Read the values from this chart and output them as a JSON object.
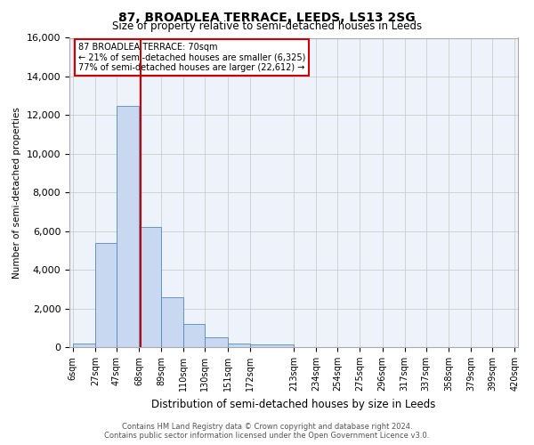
{
  "title_line1": "87, BROADLEA TERRACE, LEEDS, LS13 2SG",
  "title_line2": "Size of property relative to semi-detached houses in Leeds",
  "xlabel": "Distribution of semi-detached houses by size in Leeds",
  "ylabel": "Number of semi-detached properties",
  "annotation_title": "87 BROADLEA TERRACE: 70sqm",
  "annotation_line2": "← 21% of semi-detached houses are smaller (6,325)",
  "annotation_line3": "77% of semi-detached houses are larger (22,612) →",
  "property_size": 70,
  "bin_edges": [
    6,
    27,
    47,
    68,
    89,
    110,
    130,
    151,
    172,
    213,
    234,
    254,
    275,
    296,
    317,
    337,
    358,
    379,
    399,
    420
  ],
  "bar_heights": [
    200,
    5400,
    12500,
    6200,
    2600,
    1200,
    500,
    200,
    130,
    0,
    0,
    0,
    0,
    0,
    0,
    0,
    0,
    0,
    0
  ],
  "bar_color": "#c8d8f0",
  "bar_edge_color": "#5588bb",
  "red_line_color": "#cc0000",
  "annotation_box_color": "#cc0000",
  "grid_color": "#cccccc",
  "background_color": "#eef2fb",
  "ylim": [
    0,
    16000
  ],
  "yticks": [
    0,
    2000,
    4000,
    6000,
    8000,
    10000,
    12000,
    14000,
    16000
  ],
  "footer_line1": "Contains HM Land Registry data © Crown copyright and database right 2024.",
  "footer_line2": "Contains public sector information licensed under the Open Government Licence v3.0."
}
